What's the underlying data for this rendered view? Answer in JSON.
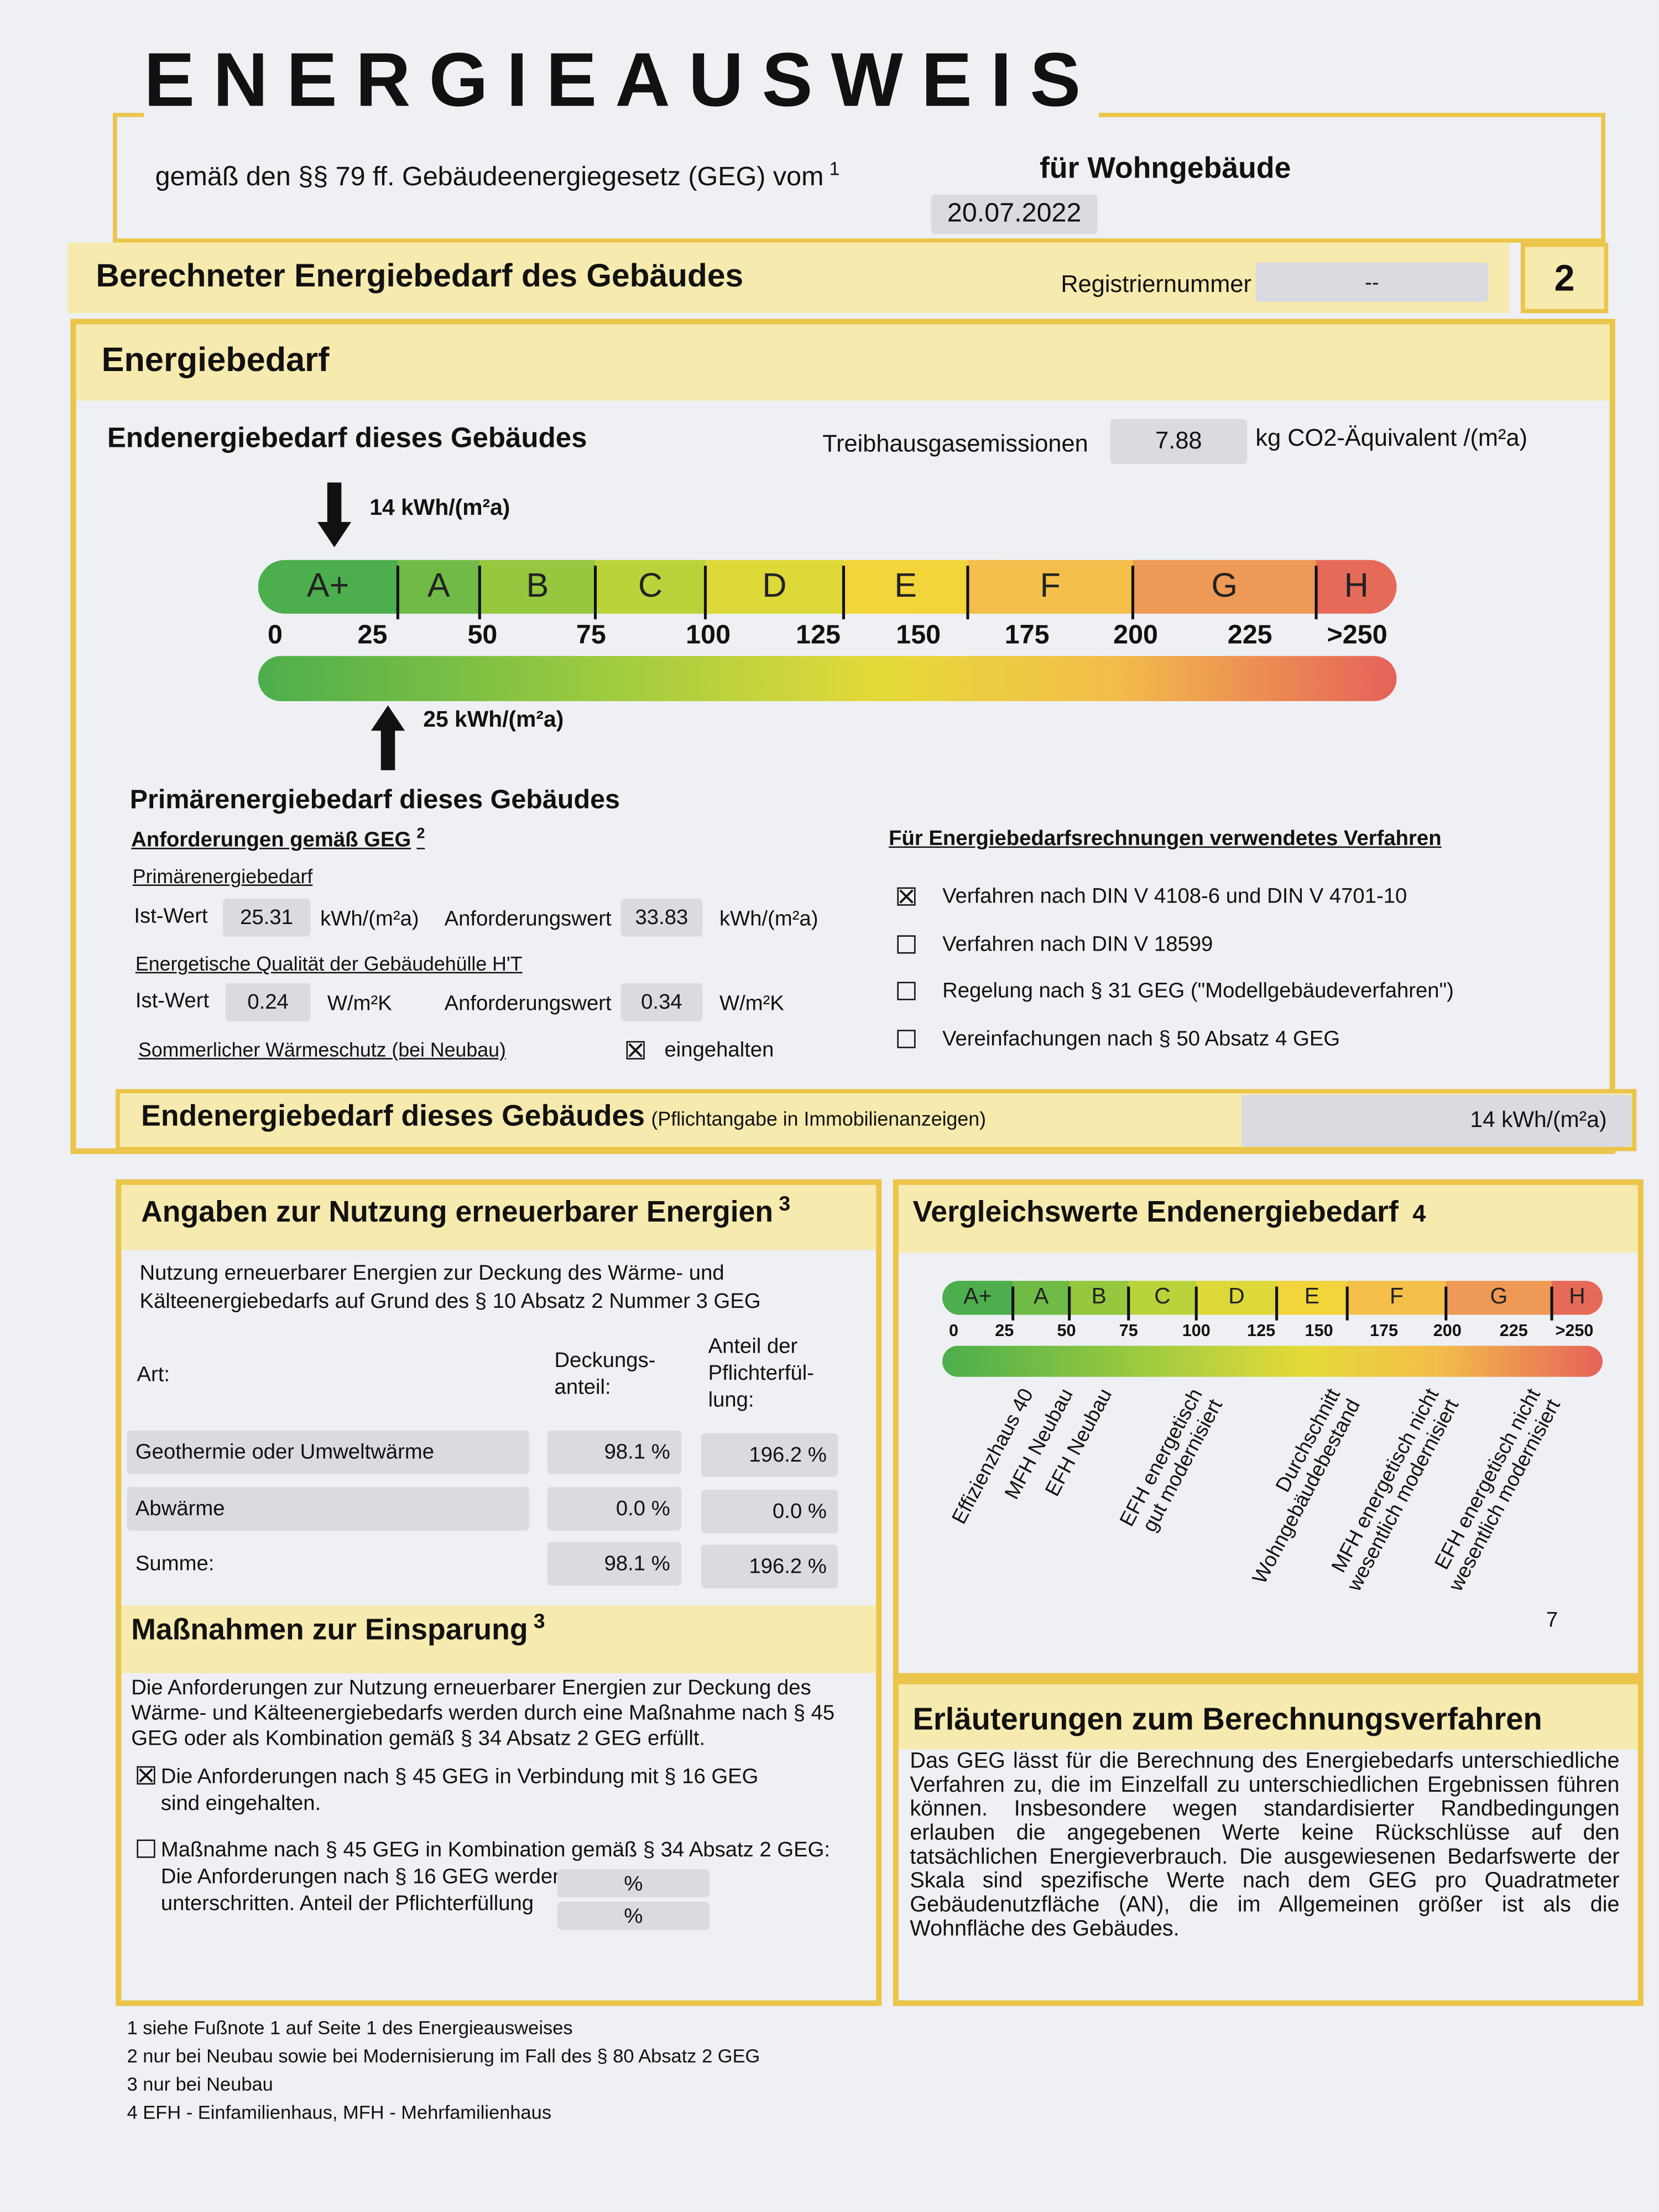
{
  "header": {
    "title": "ENERGIEAUSWEIS",
    "subtitle": "gemäß den §§ 79 ff. Gebäudeenergiegesetz (GEG) vom",
    "subtitle_mark": "1",
    "date": "20.07.2022",
    "building_type": "für Wohngebäude"
  },
  "section": {
    "title": "Berechneter Energiebedarf des Gebäudes",
    "reg_label": "Registriernummer",
    "reg_value": "--",
    "page": "2"
  },
  "energiebedarf": {
    "title": "Energiebedarf",
    "endenergie_label": "Endenergiebedarf dieses Gebäudes",
    "thg_label": "Treibhausgasemissionen",
    "thg_value": "7.88",
    "thg_unit": "kg CO2-Äquivalent /(m²a)",
    "top_arrow": "14 kWh/(m²a)",
    "bottom_arrow": "25 kWh/(m²a)",
    "classes": [
      "A+",
      "A",
      "B",
      "C",
      "D",
      "E",
      "F",
      "G",
      "H"
    ],
    "ticks": [
      "0",
      "25",
      "50",
      "75",
      "100",
      "125",
      "150",
      "175",
      "200",
      "225",
      ">250"
    ],
    "primaer_label": "Primärenergiebedarf dieses Gebäudes"
  },
  "anforderungen": {
    "title": "Anforderungen gemäß GEG",
    "title_mark": "2",
    "primaer": {
      "title": "Primärenergiebedarf",
      "ist_label": "Ist-Wert",
      "ist_value": "25.31",
      "ist_unit": "kWh/(m²a)",
      "anf_label": "Anforderungswert",
      "anf_value": "33.83",
      "anf_unit": "kWh/(m²a)"
    },
    "huelle": {
      "title": "Energetische Qualität der Gebäudehülle H'T",
      "ist_label": "Ist-Wert",
      "ist_value": "0.24",
      "ist_unit": "W/m²K",
      "anf_label": "Anforderungswert",
      "anf_value": "0.34",
      "anf_unit": "W/m²K"
    },
    "sommer": {
      "title": "Sommerlicher Wärmeschutz (bei Neubau)",
      "checked": true,
      "label": "eingehalten"
    }
  },
  "verfahren": {
    "title": "Für Energiebedarfsrechnungen verwendetes Verfahren",
    "items": [
      {
        "label": "Verfahren nach DIN V 4108-6 und DIN V 4701-10",
        "checked": true
      },
      {
        "label": "Verfahren nach DIN V 18599",
        "checked": false
      },
      {
        "label": "Regelung nach § 31 GEG (\"Modellgebäudeverfahren\")",
        "checked": false
      },
      {
        "label": "Vereinfachungen nach § 50 Absatz 4 GEG",
        "checked": false
      }
    ]
  },
  "summary": {
    "title": "Endenergiebedarf dieses Gebäudes",
    "note": "(Pflichtangabe in Immobilienanzeigen)",
    "value": "14 kWh/(m²a)"
  },
  "erneuerbar": {
    "title": "Angaben zur Nutzung erneuerbarer Energien",
    "title_mark": "3",
    "intro": "Nutzung erneuerbarer Energien zur Deckung des Wärme- und\nKälteenergiebedarfs auf Grund des § 10 Absatz 2 Nummer 3 GEG",
    "columns": [
      "Art:",
      "Deckungs-\nanteil:",
      "Anteil der\nPflichterfül-\nlung:"
    ],
    "rows": [
      [
        "Geothermie oder Umweltwärme",
        "98.1 %",
        "196.2 %"
      ],
      [
        "Abwärme",
        "0.0 %",
        "0.0 %"
      ],
      [
        "Summe:",
        "98.1 %",
        "196.2 %"
      ]
    ]
  },
  "massnahmen": {
    "title": "Maßnahmen zur Einsparung",
    "title_mark": "3",
    "text": "Die Anforderungen zur Nutzung erneuerbarer Energien zur Deckung des Wärme- und Kälteenergiebedarfs werden durch eine Maßnahme  nach § 45 GEG oder als Kombination gemäß § 34 Absatz 2 GEG erfüllt.",
    "items": [
      {
        "label": "Die Anforderungen nach § 45 GEG in Verbindung mit § 16 GEG sind eingehalten.",
        "checked": true
      },
      {
        "label": "Maßnahme nach § 45 GEG in Kombination gemäß § 34 Absatz 2 GEG: Die Anforderungen nach § 16 GEG werden um\nunterschritten. Anteil der Pflichterfüllung",
        "checked": false
      }
    ],
    "unit": "%"
  },
  "vergleich": {
    "title": "Vergleichswerte Endenergiebedarf",
    "title_mark": "4",
    "labels": [
      [
        "Effizienzhaus 40"
      ],
      [
        "MFH Neubau"
      ],
      [
        "EFH Neubau"
      ],
      [
        "EFH energetisch",
        "gut modernisiert"
      ],
      [
        "Durchschnitt",
        "Wohngebäudebestand"
      ],
      [
        "MFH energetisch nicht",
        "wesentlich modernisiert"
      ],
      [
        "EFH energetisch nicht",
        "wesentlich modernisiert"
      ]
    ],
    "mark": "7"
  },
  "erlaeuterungen": {
    "title": "Erläuterungen zum Berechnungsverfahren",
    "text": "Das GEG lässt für die Berechnung des Energiebedarfs unterschiedliche Verfahren zu, die im Einzelfall zu unterschiedlichen Ergebnissen führen können. Insbesondere wegen standardisierter Randbedingungen erlauben die angegebenen Werte keine Rückschlüsse auf den tatsächlichen Energieverbrauch. Die ausgewiesenen Bedarfswerte der Skala sind spezifische Werte nach dem GEG pro Quadratmeter Gebäudenutzfläche (AN), die im Allgemeinen größer ist als die Wohnfläche des Gebäudes."
  },
  "footnotes": [
    "1 siehe Fußnote 1 auf Seite 1 des Energieausweises",
    "2 nur bei Neubau sowie bei Modernisierung im Fall des § 80 Absatz 2 GEG",
    "3 nur bei Neubau",
    "4 EFH - Einfamilienhaus, MFH - Mehrfamilienhaus"
  ]
}
